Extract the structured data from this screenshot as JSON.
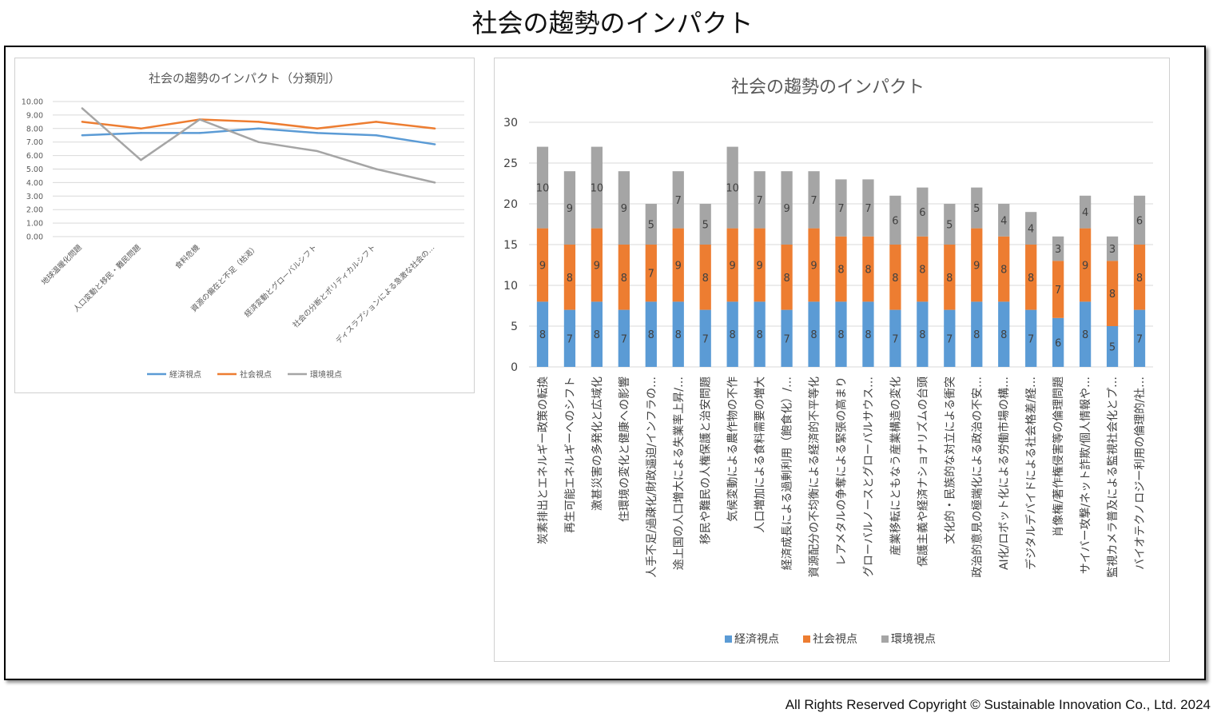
{
  "page": {
    "title": "社会の趨勢のインパクト",
    "copyright": "All Rights Reserved Copyright © Sustainable Innovation Co., Ltd. 2024"
  },
  "colors": {
    "economic": "#5b9bd5",
    "social": "#ed7d31",
    "environment": "#a5a5a5",
    "grid": "#d9d9d9",
    "axis_text": "#595959"
  },
  "chart_data": [
    {
      "type": "line",
      "title": "社会の趨勢のインパクト（分類別）",
      "categories": [
        "地球温暖化問題",
        "人口変動と移民・難民問題",
        "食料危機",
        "資源の偏在と不足（枯渇）",
        "経済変動とグローバルシフト",
        "社会の分断とポリティカルシフト",
        "ディスラプションによる急激な社会の…"
      ],
      "ylim": [
        0,
        10
      ],
      "yticks": [
        "0.00",
        "1.00",
        "2.00",
        "3.00",
        "4.00",
        "5.00",
        "6.00",
        "7.00",
        "8.00",
        "9.00",
        "10.00"
      ],
      "grid": true,
      "legend_position": "bottom",
      "series": [
        {
          "name": "経済視点",
          "values": [
            7.5,
            7.67,
            7.67,
            8.0,
            7.67,
            7.5,
            6.83
          ]
        },
        {
          "name": "社会視点",
          "values": [
            8.5,
            8.0,
            8.67,
            8.5,
            8.0,
            8.5,
            8.0
          ]
        },
        {
          "name": "環境視点",
          "values": [
            9.5,
            5.67,
            8.67,
            7.0,
            6.33,
            5.0,
            4.0
          ]
        }
      ]
    },
    {
      "type": "bar",
      "stacked": true,
      "title": "社会の趨勢のインパクト",
      "categories": [
        "炭素排出とエネルギー政策の転換",
        "再生可能エネルギーへのシフト",
        "激甚災害の多発化と広域化",
        "住環境の変化と健康への影響",
        "人手不足/過疎化/財政逼迫/インフラの…",
        "途上国の人口増大による失業率上昇/…",
        "移民や難民の人権保護と治安問題",
        "気候変動による農作物の不作",
        "人口増加による食料需要の増大",
        "経済成長による過剰利用（飽食化）/…",
        "資源配分の不均衡による経済的不平等化",
        "レアメタルの争奪による緊張の高まり",
        "グローバルノースとグローバルサウス…",
        "産業移転にともなう産業構造の変化",
        "保護主義や経済ナショナリズムの台頭",
        "文化的・民族的な対立による衝突",
        "政治的意見の極端化による政治の不安…",
        "AI化/ロボット化による労働市場の構…",
        "デジタルデバイドによる社会格差/経…",
        "肖像権/著作権侵害等の倫理問題",
        "サイバー攻撃/ネット詐欺/個人情報や…",
        "監視カメラ普及による監視社会化とプ…",
        "バイオテクノロジー利用の倫理的/社…"
      ],
      "ylim": [
        0,
        30
      ],
      "yticks": [
        "0",
        "5",
        "10",
        "15",
        "20",
        "25",
        "30"
      ],
      "grid": true,
      "legend_position": "bottom",
      "series": [
        {
          "name": "経済視点",
          "values": [
            8,
            7,
            8,
            7,
            8,
            8,
            7,
            8,
            8,
            7,
            8,
            8,
            8,
            7,
            8,
            7,
            8,
            8,
            7,
            6,
            8,
            5,
            7
          ]
        },
        {
          "name": "社会視点",
          "values": [
            9,
            8,
            9,
            8,
            7,
            9,
            8,
            9,
            9,
            8,
            9,
            8,
            8,
            8,
            8,
            8,
            9,
            8,
            8,
            7,
            9,
            8,
            8
          ]
        },
        {
          "name": "環境視点",
          "values": [
            10,
            9,
            10,
            9,
            5,
            7,
            5,
            10,
            7,
            9,
            7,
            7,
            7,
            6,
            6,
            5,
            5,
            4,
            4,
            3,
            4,
            3,
            6
          ]
        }
      ]
    }
  ]
}
